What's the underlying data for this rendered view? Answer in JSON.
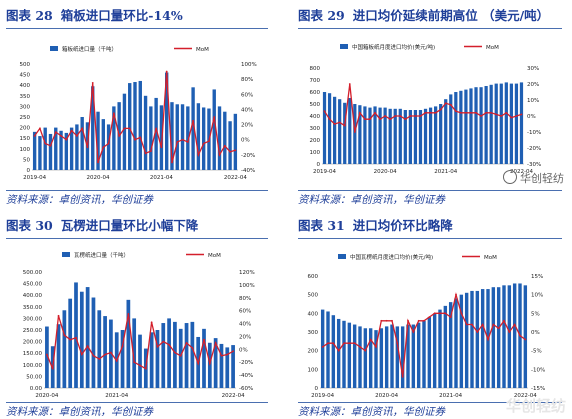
{
  "panels": [
    {
      "num": "图表 28",
      "title": "箱板进口量环比-14%",
      "source": "资料来源：卓创资讯，华创证券"
    },
    {
      "num": "图表 29",
      "title": "进口均价延续前期高位  （美元/吨）",
      "source": "资料来源：卓创资讯，华创证券"
    },
    {
      "num": "图表 30",
      "title": "瓦楞进口量环比小幅下降",
      "source": "资料来源：卓创资讯，华创证券"
    },
    {
      "num": "图表 31",
      "title": "进口均价环比略降",
      "source": "资料来源：卓创资讯，华创证券"
    }
  ],
  "watermark": "华创轻纺",
  "chart_data": [
    {
      "type": "bar",
      "id": "c28",
      "bar_name": "箱板纸进口量（千吨）",
      "line_name": "MoM",
      "x_tick_labels": [
        "2019-04",
        "2020-04",
        "2021-04",
        "2022-04"
      ],
      "left_ticks": [
        "0",
        "50",
        "100",
        "150",
        "200",
        "250",
        "300",
        "350",
        "400",
        "450",
        "500"
      ],
      "right_ticks": [
        "-40%",
        "-20%",
        "0%",
        "20%",
        "40%",
        "60%",
        "80%",
        "100%"
      ],
      "ylim": [
        0,
        500
      ],
      "y2lim": [
        -40,
        100
      ],
      "bar_color": "#1f5fb3",
      "line_color": "#d41f2b",
      "bars": [
        180,
        160,
        200,
        170,
        200,
        185,
        175,
        200,
        215,
        250,
        225,
        395,
        275,
        240,
        215,
        300,
        320,
        360,
        410,
        415,
        420,
        350,
        300,
        340,
        305,
        460,
        320,
        310,
        310,
        300,
        390,
        315,
        295,
        290,
        380,
        300,
        275,
        230,
        265
      ],
      "mom": [
        5,
        15,
        -5,
        -8,
        10,
        5,
        0,
        12,
        5,
        15,
        -10,
        75,
        -30,
        -10,
        -5,
        35,
        5,
        15,
        15,
        0,
        3,
        -18,
        -15,
        15,
        -10,
        90,
        -30,
        -3,
        0,
        -3,
        25,
        -20,
        -5,
        -2,
        30,
        -20,
        -8,
        -16,
        -14
      ]
    },
    {
      "type": "bar",
      "id": "c29",
      "bar_name": "中国箱板纸月度进口均价(美元/吨)",
      "line_name": "MoM",
      "x_tick_labels": [
        "2019-04",
        "2020-04",
        "2021-04",
        "2022-04"
      ],
      "left_ticks": [
        "0",
        "100",
        "200",
        "300",
        "400",
        "500",
        "600",
        "700",
        "800"
      ],
      "right_ticks": [
        "-30%",
        "-20%",
        "-10%",
        "0%",
        "10%",
        "20%",
        "30%"
      ],
      "ylim": [
        0,
        800
      ],
      "y2lim": [
        -30,
        30
      ],
      "bar_color": "#1f5fb3",
      "line_color": "#d41f2b",
      "bars": [
        600,
        590,
        560,
        540,
        510,
        550,
        500,
        490,
        480,
        470,
        480,
        470,
        470,
        460,
        460,
        460,
        450,
        450,
        450,
        450,
        460,
        470,
        480,
        500,
        540,
        580,
        600,
        610,
        620,
        630,
        640,
        640,
        650,
        660,
        670,
        670,
        680,
        670,
        670,
        680
      ],
      "mom": [
        3,
        -2,
        -5,
        -4,
        -6,
        20,
        -10,
        2,
        -2,
        -2,
        2,
        -2,
        0,
        -2,
        0,
        0,
        -2,
        0,
        0,
        0,
        2,
        2,
        2,
        4,
        8,
        7,
        3,
        2,
        2,
        2,
        2,
        0,
        2,
        2,
        1,
        0,
        2,
        -1,
        0,
        1
      ]
    },
    {
      "type": "bar",
      "id": "c30",
      "bar_name": "瓦楞纸进口量（千吨）",
      "line_name": "MoM",
      "x_tick_labels": [
        "2020-04",
        "2021-04",
        "2022-04"
      ],
      "left_ticks": [
        "0.00",
        "50.00",
        "100.00",
        "150.00",
        "200.00",
        "250.00",
        "300.00",
        "350.00",
        "400.00",
        "450.00",
        "500.00"
      ],
      "right_ticks": [
        "-60%",
        "-40%",
        "-20%",
        "0%",
        "20%",
        "40%",
        "60%",
        "80%",
        "100%",
        "120%"
      ],
      "ylim": [
        0,
        500
      ],
      "y2lim": [
        -60,
        120
      ],
      "bar_color": "#1f5fb3",
      "line_color": "#d41f2b",
      "bars": [
        265,
        180,
        275,
        335,
        385,
        455,
        415,
        435,
        390,
        335,
        310,
        295,
        240,
        250,
        380,
        300,
        230,
        170,
        240,
        250,
        280,
        300,
        285,
        255,
        280,
        285,
        220,
        255,
        195,
        215,
        190,
        175,
        185
      ],
      "mom": [
        -8,
        -30,
        52,
        22,
        15,
        18,
        -8,
        5,
        -10,
        -15,
        -8,
        -5,
        -18,
        5,
        55,
        -20,
        -25,
        -30,
        42,
        4,
        12,
        7,
        -5,
        -10,
        10,
        2,
        -22,
        15,
        -22,
        10,
        -10,
        -8,
        -3
      ]
    },
    {
      "type": "bar",
      "id": "c31",
      "bar_name": "中国瓦楞纸月度进口均价(美元/吨)",
      "line_name": "MoM",
      "x_tick_labels": [
        "2019-04",
        "2020-04",
        "2021-04",
        "2022-04"
      ],
      "left_ticks": [
        "0",
        "100",
        "200",
        "300",
        "400",
        "500",
        "600"
      ],
      "right_ticks": [
        "-15%",
        "-10%",
        "-5%",
        "0%",
        "5%",
        "10%",
        "15%"
      ],
      "ylim": [
        0,
        600
      ],
      "y2lim": [
        -15,
        15
      ],
      "bar_color": "#1f5fb3",
      "line_color": "#d41f2b",
      "bars": [
        420,
        410,
        390,
        370,
        360,
        350,
        340,
        330,
        320,
        320,
        310,
        320,
        330,
        340,
        330,
        330,
        340,
        340,
        350,
        360,
        380,
        400,
        420,
        440,
        460,
        480,
        500,
        510,
        520,
        520,
        530,
        530,
        540,
        540,
        550,
        550,
        560,
        560,
        550
      ],
      "mom": [
        -4,
        -3,
        -3,
        -5,
        -3,
        -3,
        -3,
        -4,
        -5,
        -2,
        -4,
        3,
        3,
        3,
        -3,
        -12,
        3,
        0,
        3,
        3,
        4,
        5,
        5,
        5,
        4,
        10,
        5,
        2,
        2,
        0,
        2,
        -2,
        2,
        1,
        3,
        0,
        2,
        -1,
        -2
      ]
    }
  ]
}
